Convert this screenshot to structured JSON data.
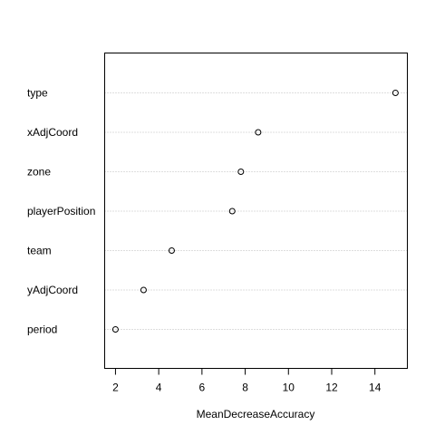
{
  "chart_data": {
    "type": "scatter",
    "title": "",
    "xlabel": "MeanDecreaseAccuracy",
    "ylabel": "",
    "xlim": [
      1.5,
      15.5
    ],
    "xticks": [
      2,
      4,
      6,
      8,
      10,
      12,
      14
    ],
    "grid": "horizontal dotted lines",
    "legend": "none",
    "points": [
      {
        "label": "type",
        "value": 14.95
      },
      {
        "label": "xAdjCoord",
        "value": 8.6
      },
      {
        "label": "zone",
        "value": 7.8
      },
      {
        "label": "playerPosition",
        "value": 7.4
      },
      {
        "label": "team",
        "value": 4.6
      },
      {
        "label": "yAdjCoord",
        "value": 3.3
      },
      {
        "label": "period",
        "value": 2.0
      }
    ],
    "colors": {
      "axis": "#000000",
      "grid": "#bebebe",
      "marker": "#000000"
    }
  }
}
